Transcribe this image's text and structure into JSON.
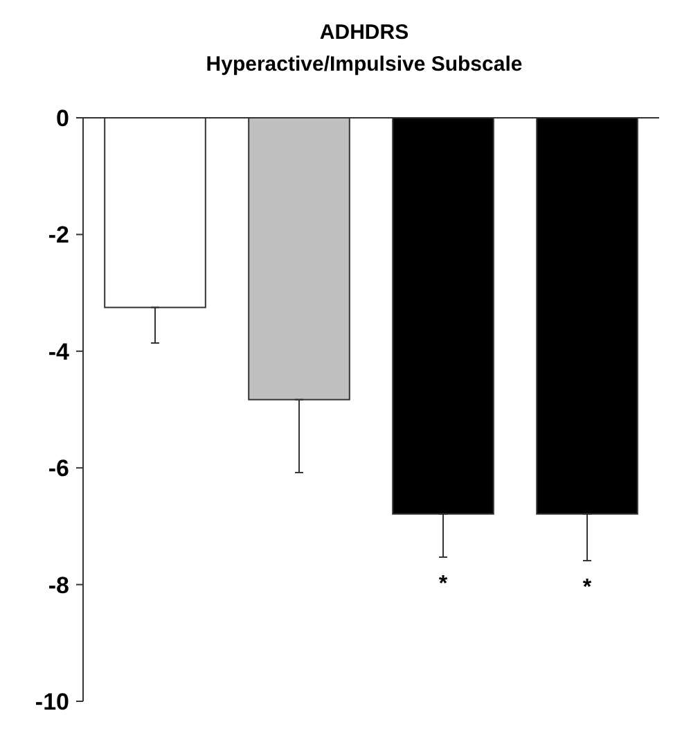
{
  "chart_data": {
    "type": "bar",
    "title": "ADHDRS\nHyperactive/Impulsive Subscale",
    "categories": [
      null,
      null,
      null,
      null
    ],
    "values": [
      -3.25,
      -4.83,
      -6.79,
      -6.79
    ],
    "colors": [
      "#ffffff",
      "#c0c0c0",
      "#000000",
      "#000000"
    ],
    "errors": [
      [
        -3.86,
        -3.25
      ],
      [
        -6.08,
        -4.83
      ],
      [
        -7.53,
        -6.79
      ],
      [
        -7.59,
        -6.79
      ]
    ],
    "value_labels": [
      null,
      null,
      "*",
      "*"
    ],
    "ylim": [
      -10,
      0
    ],
    "yticks": [
      -10,
      -8,
      -6,
      -4,
      -2,
      0
    ],
    "grid": false
  }
}
